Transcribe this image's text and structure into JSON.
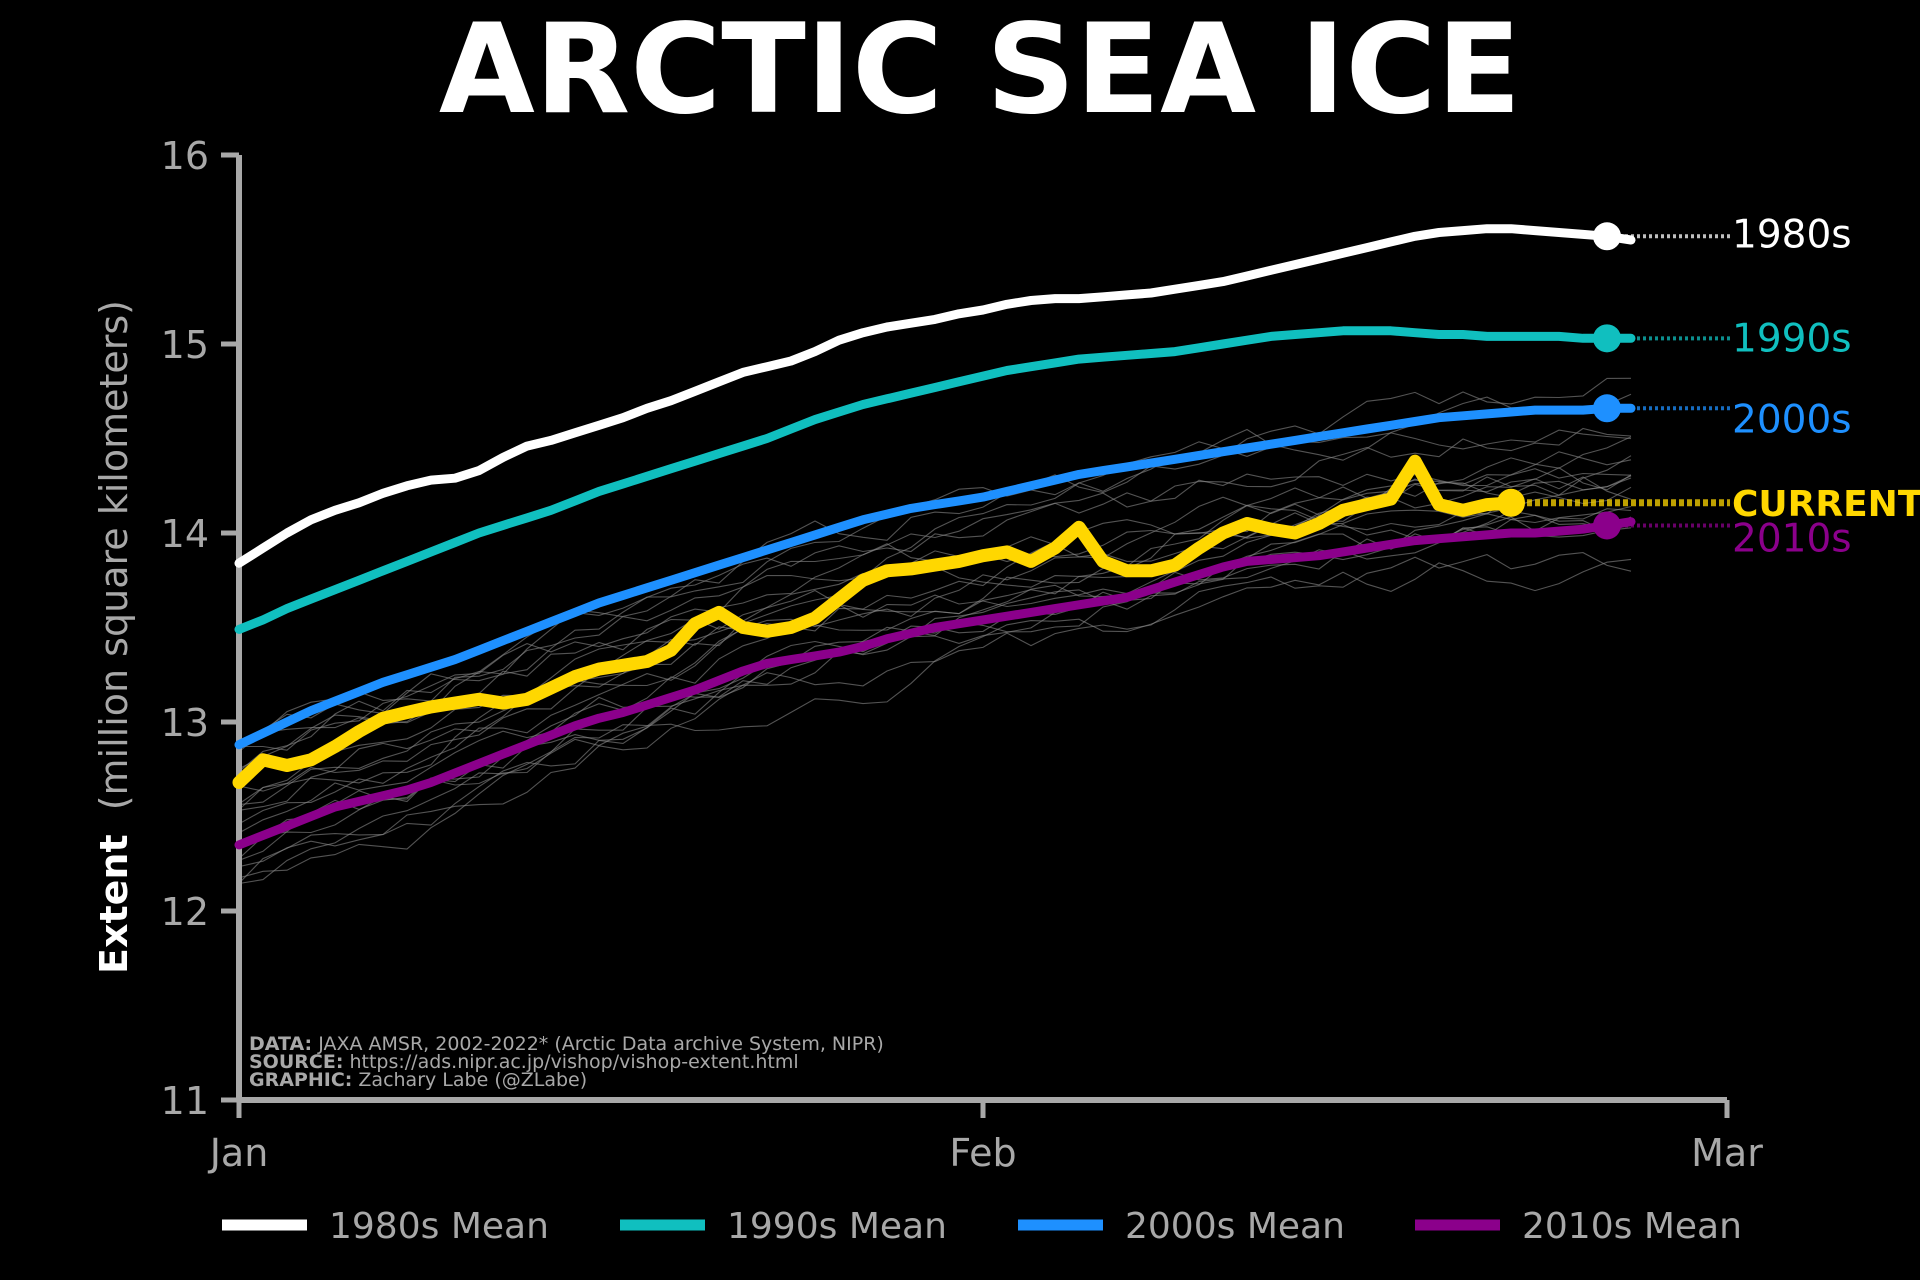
{
  "chart_data": {
    "type": "line",
    "title": "ARCTIC SEA ICE",
    "ylabel_bold": "Extent",
    "ylabel_rest": "(million square kilometers)",
    "x_tick_labels": [
      "Jan",
      "Feb",
      "Mar"
    ],
    "x_tick_days": [
      1,
      32,
      63
    ],
    "ylim": [
      11,
      16
    ],
    "y_ticks": [
      11,
      12,
      13,
      14,
      15,
      16
    ],
    "grid": false,
    "legend_position": "bottom",
    "x_day_last": 58,
    "series": [
      {
        "name": "1980s",
        "legend": "1980s Mean",
        "color": "#ffffff",
        "end_label": "1980s",
        "values": [
          13.84,
          13.92,
          14.0,
          14.07,
          14.12,
          14.16,
          14.21,
          14.25,
          14.28,
          14.29,
          14.33,
          14.4,
          14.46,
          14.49,
          14.53,
          14.57,
          14.61,
          14.66,
          14.7,
          14.75,
          14.8,
          14.85,
          14.88,
          14.91,
          14.96,
          15.02,
          15.06,
          15.09,
          15.11,
          15.13,
          15.16,
          15.18,
          15.21,
          15.23,
          15.24,
          15.24,
          15.25,
          15.26,
          15.27,
          15.29,
          15.31,
          15.33,
          15.36,
          15.39,
          15.42,
          15.45,
          15.48,
          15.51,
          15.54,
          15.57,
          15.59,
          15.6,
          15.61,
          15.61,
          15.6,
          15.59,
          15.58,
          15.57,
          15.55
        ]
      },
      {
        "name": "1990s",
        "legend": "1990s Mean",
        "color": "#10bfbf",
        "end_label": "1990s",
        "values": [
          13.49,
          13.54,
          13.6,
          13.65,
          13.7,
          13.75,
          13.8,
          13.85,
          13.9,
          13.95,
          14.0,
          14.04,
          14.08,
          14.12,
          14.17,
          14.22,
          14.26,
          14.3,
          14.34,
          14.38,
          14.42,
          14.46,
          14.5,
          14.55,
          14.6,
          14.64,
          14.68,
          14.71,
          14.74,
          14.77,
          14.8,
          14.83,
          14.86,
          14.88,
          14.9,
          14.92,
          14.93,
          14.94,
          14.95,
          14.96,
          14.98,
          15.0,
          15.02,
          15.04,
          15.05,
          15.06,
          15.07,
          15.07,
          15.07,
          15.06,
          15.05,
          15.05,
          15.04,
          15.04,
          15.04,
          15.04,
          15.03,
          15.03,
          15.03
        ]
      },
      {
        "name": "2000s",
        "legend": "2000s Mean",
        "color": "#1e90ff",
        "end_label": "2000s",
        "values": [
          12.88,
          12.94,
          13.0,
          13.06,
          13.11,
          13.16,
          13.21,
          13.25,
          13.29,
          13.33,
          13.38,
          13.43,
          13.48,
          13.53,
          13.58,
          13.63,
          13.67,
          13.71,
          13.75,
          13.79,
          13.83,
          13.87,
          13.91,
          13.95,
          13.99,
          14.03,
          14.07,
          14.1,
          14.13,
          14.15,
          14.17,
          14.19,
          14.22,
          14.25,
          14.28,
          14.31,
          14.33,
          14.35,
          14.37,
          14.39,
          14.41,
          14.43,
          14.45,
          14.47,
          14.49,
          14.51,
          14.53,
          14.55,
          14.57,
          14.59,
          14.61,
          14.62,
          14.63,
          14.64,
          14.65,
          14.65,
          14.65,
          14.66,
          14.66
        ]
      },
      {
        "name": "2010s",
        "legend": "2010s Mean",
        "color": "#8b008b",
        "end_label": "2010s",
        "values": [
          12.35,
          12.4,
          12.45,
          12.5,
          12.55,
          12.58,
          12.61,
          12.64,
          12.68,
          12.73,
          12.78,
          12.83,
          12.88,
          12.93,
          12.98,
          13.02,
          13.05,
          13.09,
          13.13,
          13.17,
          13.22,
          13.27,
          13.31,
          13.33,
          13.35,
          13.37,
          13.4,
          13.44,
          13.47,
          13.5,
          13.52,
          13.54,
          13.56,
          13.58,
          13.6,
          13.62,
          13.64,
          13.66,
          13.7,
          13.74,
          13.78,
          13.82,
          13.85,
          13.86,
          13.87,
          13.88,
          13.9,
          13.92,
          13.94,
          13.96,
          13.97,
          13.98,
          13.99,
          14.0,
          14.0,
          14.01,
          14.02,
          14.04,
          14.06
        ]
      },
      {
        "name": "CURRENT",
        "color": "#ffd700",
        "end_label": "CURRENT",
        "values": [
          12.68,
          12.8,
          12.77,
          12.8,
          12.87,
          12.95,
          13.02,
          13.05,
          13.08,
          13.1,
          13.12,
          13.1,
          13.12,
          13.18,
          13.24,
          13.28,
          13.3,
          13.32,
          13.38,
          13.52,
          13.58,
          13.5,
          13.48,
          13.5,
          13.55,
          13.65,
          13.75,
          13.8,
          13.81,
          13.83,
          13.85,
          13.88,
          13.9,
          13.85,
          13.92,
          14.03,
          13.85,
          13.8,
          13.8,
          13.83,
          13.92,
          14.0,
          14.05,
          14.02,
          14.0,
          14.05,
          14.12,
          14.15,
          14.18,
          14.38,
          14.15,
          14.12,
          14.15,
          14.16
        ]
      }
    ],
    "annotations": [
      {
        "bold": "DATA:",
        "text": " JAXA AMSR, 2002-2022* (Arctic Data archive System, NIPR)"
      },
      {
        "bold": "SOURCE:",
        "text": " https://ads.nipr.ac.jp/vishop/vishop-extent.html"
      },
      {
        "bold": "GRAPHIC:",
        "text": " Zachary Labe (@ZLabe)"
      }
    ]
  }
}
